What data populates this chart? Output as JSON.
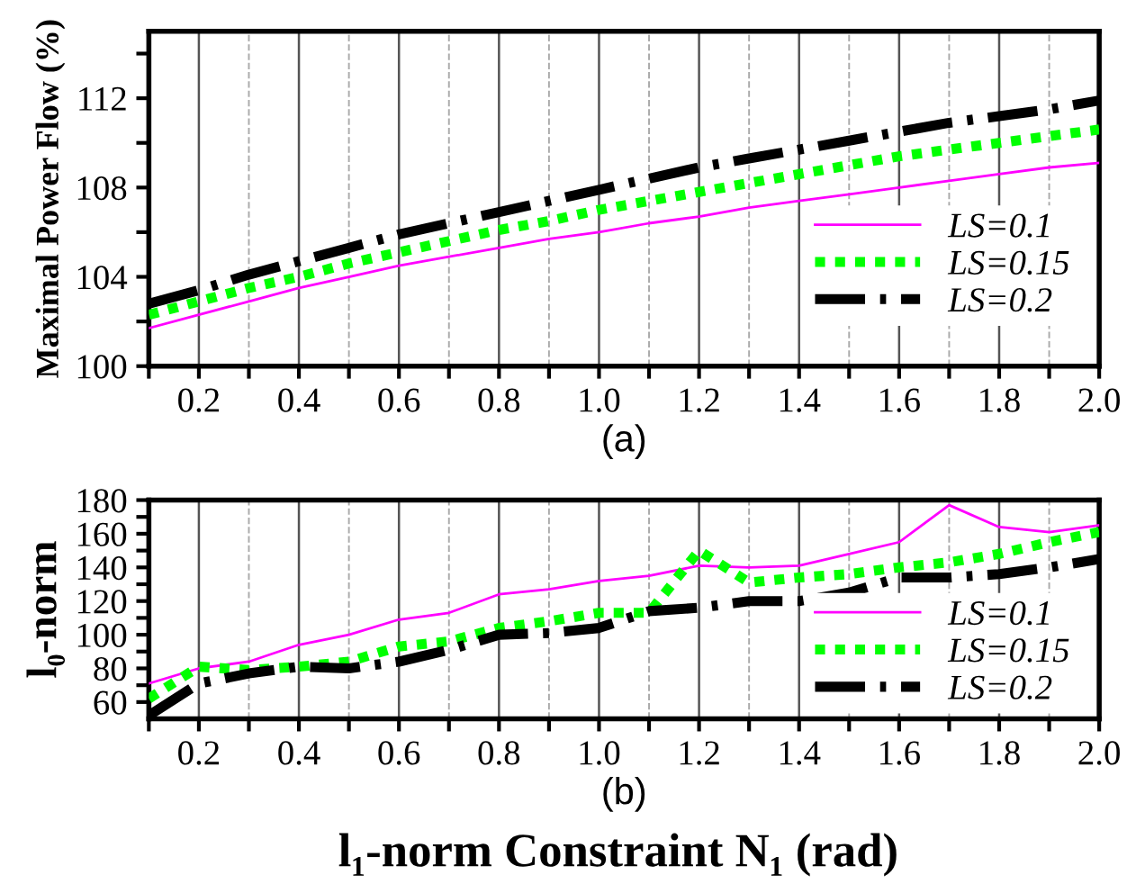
{
  "chart_data": [
    {
      "type": "line",
      "xlabel": "(a)",
      "ylabel": "Maximal Power Flow (%)",
      "x": [
        0.1,
        0.2,
        0.3,
        0.4,
        0.5,
        0.6,
        0.7,
        0.8,
        0.9,
        1.0,
        1.1,
        1.2,
        1.3,
        1.4,
        1.5,
        1.6,
        1.7,
        1.8,
        1.9,
        2.0
      ],
      "series": [
        {
          "name": "LS=0.1",
          "color": "#ff00ff",
          "line_style": "solid",
          "values": [
            101.7,
            102.3,
            102.9,
            103.5,
            104.0,
            104.5,
            104.9,
            105.3,
            105.7,
            106.0,
            106.4,
            106.7,
            107.1,
            107.4,
            107.7,
            108.0,
            108.3,
            108.6,
            108.9,
            109.1
          ]
        },
        {
          "name": "LS=0.15",
          "color": "#00ff00",
          "line_style": "dotted",
          "values": [
            102.3,
            102.9,
            103.5,
            104.0,
            104.6,
            105.1,
            105.6,
            106.1,
            106.5,
            107.0,
            107.4,
            107.8,
            108.2,
            108.6,
            109.0,
            109.4,
            109.7,
            110.0,
            110.3,
            110.6
          ]
        },
        {
          "name": "LS=0.2",
          "color": "#000000",
          "line_style": "dashed",
          "values": [
            102.8,
            103.4,
            104.1,
            104.7,
            105.3,
            105.9,
            106.4,
            106.9,
            107.4,
            107.9,
            108.4,
            108.9,
            109.3,
            109.7,
            110.1,
            110.5,
            110.9,
            111.2,
            111.5,
            111.9
          ]
        }
      ],
      "xlim": [
        0.1,
        2.0
      ],
      "ylim": [
        100,
        115
      ],
      "xticks": [
        {
          "value": 0.1,
          "label": null
        },
        0.2,
        {
          "value": 0.3,
          "label": null
        },
        0.4,
        {
          "value": 0.5,
          "label": null
        },
        0.6,
        {
          "value": 0.7,
          "label": null
        },
        0.8,
        {
          "value": 0.9,
          "label": null
        },
        {
          "value": 1,
          "label": "1.0"
        },
        {
          "value": 1.1,
          "label": null
        },
        1.2,
        {
          "value": 1.3,
          "label": null
        },
        1.4,
        {
          "value": 1.5,
          "label": null
        },
        1.6,
        {
          "value": 1.7,
          "label": null
        },
        1.8,
        {
          "value": 1.9,
          "label": null
        },
        {
          "value": 2,
          "label": "2.0"
        }
      ],
      "yticks": [
        100,
        {
          "value": 102,
          "label": null
        },
        104,
        {
          "value": 106,
          "label": null
        },
        108,
        {
          "value": 110,
          "label": null
        },
        112,
        {
          "value": 114,
          "label": null
        }
      ],
      "grid": "x",
      "legend": "right",
      "marker": "none"
    },
    {
      "type": "line",
      "xlabel": "(b)",
      "ylabel": "l₀-norm",
      "annotations": [
        "l₁-norm Constraint N₁ (rad)"
      ],
      "x": [
        0.1,
        0.2,
        0.3,
        0.4,
        0.5,
        0.6,
        0.7,
        0.8,
        0.9,
        1.0,
        1.1,
        1.2,
        1.3,
        1.4,
        1.5,
        1.6,
        1.7,
        1.8,
        1.9,
        2.0
      ],
      "series": [
        {
          "name": "LS=0.1",
          "color": "#ff00ff",
          "line_style": "solid",
          "values": [
            71,
            80,
            84,
            94,
            100,
            109,
            113,
            124,
            127,
            132,
            135,
            141,
            140,
            141,
            148,
            155,
            177,
            164,
            161,
            165
          ]
        },
        {
          "name": "LS=0.15",
          "color": "#00ff00",
          "line_style": "dotted",
          "values": [
            62,
            81,
            79,
            81,
            84,
            93,
            96,
            104,
            108,
            113,
            113,
            150,
            131,
            134,
            136,
            140,
            143,
            148,
            155,
            161
          ]
        },
        {
          "name": "LS=0.2",
          "color": "#000000",
          "line_style": "dashed",
          "values": [
            52,
            71,
            77,
            81,
            80,
            84,
            91,
            100,
            101,
            104,
            114,
            116,
            120,
            120,
            125,
            134,
            134,
            136,
            140,
            145
          ]
        }
      ],
      "xlim": [
        0.1,
        2.0
      ],
      "ylim": [
        50,
        180
      ],
      "xticks": [
        {
          "value": 0.1,
          "label": null
        },
        0.2,
        {
          "value": 0.3,
          "label": null
        },
        0.4,
        {
          "value": 0.5,
          "label": null
        },
        0.6,
        {
          "value": 0.7,
          "label": null
        },
        0.8,
        {
          "value": 0.9,
          "label": null
        },
        {
          "value": 1,
          "label": "1.0"
        },
        {
          "value": 1.1,
          "label": null
        },
        1.2,
        {
          "value": 1.3,
          "label": null
        },
        1.4,
        {
          "value": 1.5,
          "label": null
        },
        1.6,
        {
          "value": 1.7,
          "label": null
        },
        1.8,
        {
          "value": 1.9,
          "label": null
        },
        {
          "value": 2,
          "label": "2.0"
        }
      ],
      "yticks": [
        60,
        {
          "value": 70,
          "label": null
        },
        80,
        {
          "value": 90,
          "label": null
        },
        100,
        {
          "value": 110,
          "label": null
        },
        120,
        {
          "value": 130,
          "label": null
        },
        140,
        {
          "value": 150,
          "label": null
        },
        160,
        {
          "value": 170,
          "label": null
        },
        180
      ],
      "grid": "x",
      "legend": "right",
      "marker": "none"
    }
  ]
}
